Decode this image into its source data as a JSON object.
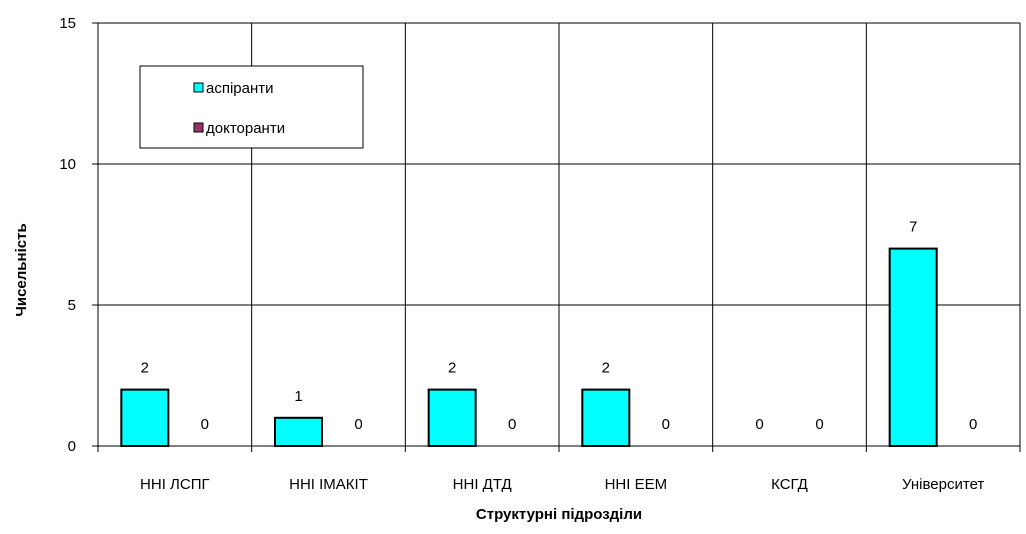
{
  "chart_data": {
    "type": "bar",
    "title": "",
    "xlabel": "Структурні підрозділи",
    "ylabel": "Чисельність",
    "ylim": [
      0,
      15
    ],
    "yticks": [
      0,
      5,
      10,
      15
    ],
    "grid": true,
    "legend_position": "top-left",
    "categories": [
      "ННІ ЛСПГ",
      "ННІ ІМАКІТ",
      "ННІ ДТД",
      "ННІ ЕЕМ",
      "КСГД",
      "Університет"
    ],
    "series": [
      {
        "name": "аспіранти",
        "values": [
          2,
          1,
          2,
          2,
          0,
          7
        ],
        "labels": [
          "2",
          "1",
          "2",
          "2",
          "0",
          "7"
        ],
        "color": "#00FFFF"
      },
      {
        "name": "докторанти",
        "values": [
          0,
          0,
          0,
          0,
          0,
          0
        ],
        "labels": [
          "0",
          "0",
          "0",
          "0",
          "0",
          "0"
        ],
        "color": "#993366"
      }
    ]
  }
}
